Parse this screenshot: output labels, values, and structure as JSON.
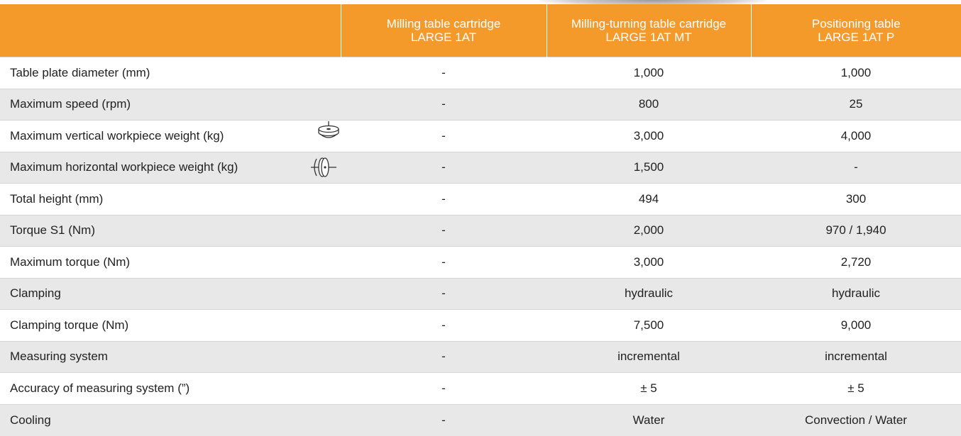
{
  "table": {
    "columns": [
      {
        "title": "Milling table cartridge",
        "model": "LARGE 1AT"
      },
      {
        "title": "Milling-turning table cartridge",
        "model": "LARGE 1AT MT"
      },
      {
        "title": "Positioning table",
        "model": "LARGE 1AT P"
      }
    ],
    "rows": [
      {
        "label": "Table plate diameter (mm)",
        "values": [
          "-",
          "1,000",
          "1,000"
        ]
      },
      {
        "label": "Maximum speed (rpm)",
        "values": [
          "-",
          "800",
          "25"
        ]
      },
      {
        "label": "Maximum vertical workpiece weight (kg)",
        "values": [
          "-",
          "3,000",
          "4,000"
        ]
      },
      {
        "label": "Maximum horizontal workpiece weight (kg)",
        "values": [
          "-",
          "1,500",
          "-"
        ]
      },
      {
        "label": "Total height (mm)",
        "values": [
          "-",
          "494",
          "300"
        ]
      },
      {
        "label": "Torque S1 (Nm)",
        "values": [
          "-",
          "2,000",
          "970 / 1,940"
        ]
      },
      {
        "label": "Maximum torque (Nm)",
        "values": [
          "-",
          "3,000",
          "2,720"
        ]
      },
      {
        "label": "Clamping",
        "values": [
          "-",
          "hydraulic",
          "hydraulic"
        ]
      },
      {
        "label": "Clamping torque (Nm)",
        "values": [
          "-",
          "7,500",
          "9,000"
        ]
      },
      {
        "label": "Measuring system",
        "values": [
          "-",
          "incremental",
          "incremental"
        ]
      },
      {
        "label": "Accuracy of measuring system (”)",
        "values": [
          "-",
          "± 5",
          "± 5"
        ]
      },
      {
        "label": "Cooling",
        "values": [
          "-",
          "Water",
          "Convection / Water"
        ]
      }
    ]
  }
}
